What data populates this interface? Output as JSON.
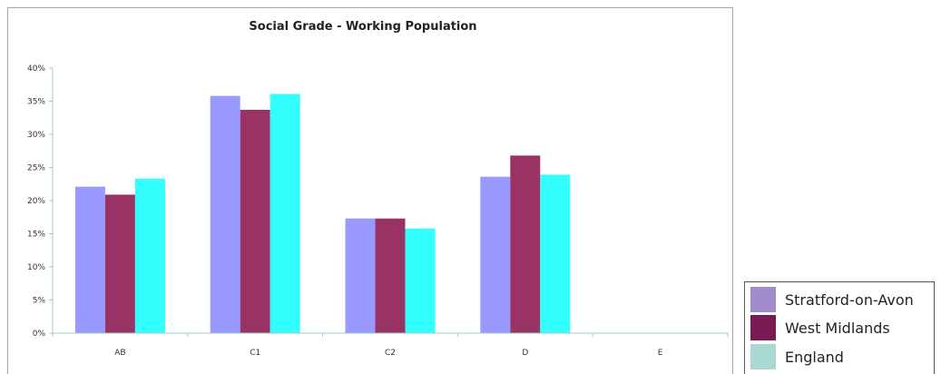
{
  "chart_data": {
    "type": "bar",
    "title": "Social Grade - Working Population",
    "xlabel": "",
    "ylabel": "",
    "categories": [
      "AB",
      "C1",
      "C2",
      "D",
      "E"
    ],
    "ylim": [
      0,
      40
    ],
    "yticks": [
      "0%",
      "5%",
      "10%",
      "15%",
      "20%",
      "25%",
      "30%",
      "35%",
      "40%"
    ],
    "grid": false,
    "legend_position": "bottom-right, outside plot",
    "series": [
      {
        "name": "Stratford-on-Avon",
        "color": "#9999ff",
        "values": [
          22.1,
          35.8,
          17.3,
          23.6,
          null
        ]
      },
      {
        "name": "West Midlands",
        "color": "#993366",
        "values": [
          20.9,
          33.7,
          17.3,
          26.8,
          null
        ]
      },
      {
        "name": "England",
        "color": "#33ffff",
        "values": [
          23.3,
          36.1,
          15.8,
          23.9,
          null
        ]
      }
    ]
  },
  "legend": {
    "items": [
      {
        "label": "Stratford-on-Avon",
        "color": "#a08ccc"
      },
      {
        "label": "West Midlands",
        "color": "#7a1a52"
      },
      {
        "label": "England",
        "color": "#a8d8d0"
      }
    ]
  }
}
